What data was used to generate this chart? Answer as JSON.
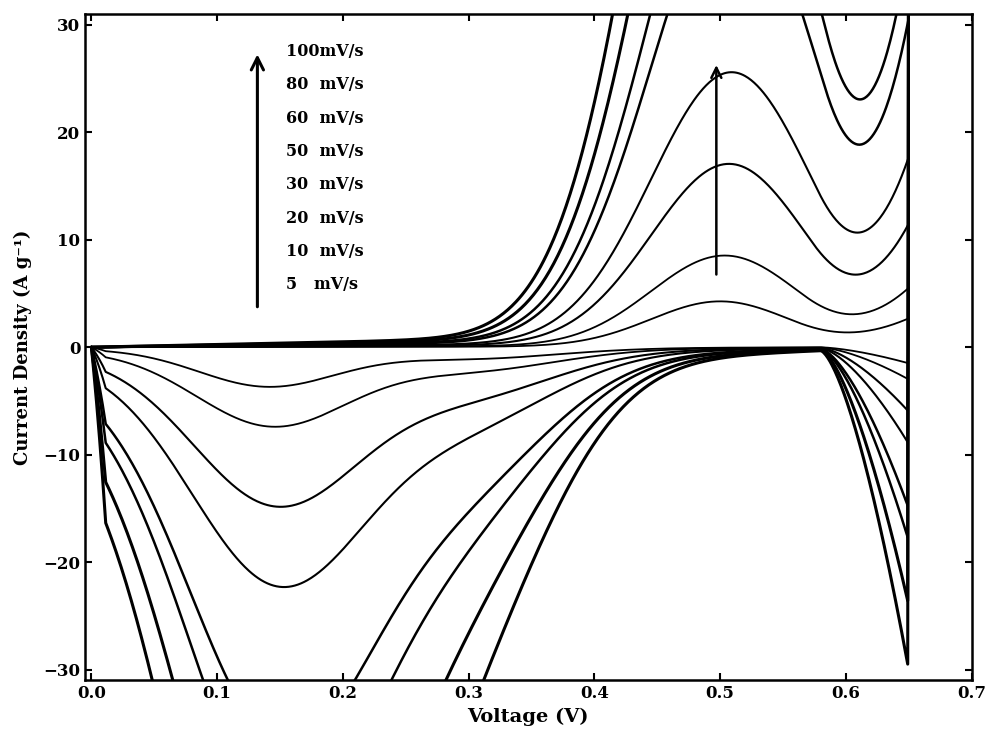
{
  "scan_rates": [
    5,
    10,
    20,
    30,
    50,
    60,
    80,
    100
  ],
  "xlabel": "Voltage (V)",
  "ylabel": "Current Density (A g⁻¹)",
  "xlim": [
    -0.005,
    0.7
  ],
  "ylim": [
    -31,
    31
  ],
  "xticks": [
    0.0,
    0.1,
    0.2,
    0.3,
    0.4,
    0.5,
    0.6,
    0.7
  ],
  "yticks": [
    -30,
    -20,
    -10,
    0,
    10,
    20,
    30
  ],
  "legend_labels": [
    "100mV/s",
    "80  mV/s",
    "60  mV/s",
    "50  mV/s",
    "30  mV/s",
    "20  mV/s",
    "10  mV/s",
    "5   mV/s"
  ],
  "line_color": "#000000",
  "background_color": "#ffffff",
  "v_max": 0.65,
  "lw_small": 1.4,
  "lw_large": 2.2
}
